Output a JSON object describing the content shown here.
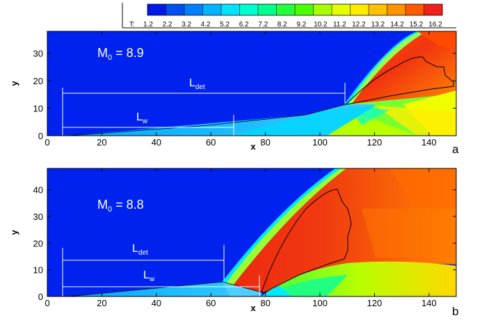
{
  "legend": {
    "label": "T:",
    "ticks": [
      "1.2",
      "2.2",
      "3.2",
      "4.2",
      "5.2",
      "6.2",
      "7.2",
      "8.2",
      "9.2",
      "10.2",
      "11.2",
      "12.2",
      "13.2",
      "14.2",
      "15.2",
      "16.2"
    ],
    "colors": [
      "#0019e8",
      "#0050f2",
      "#007ffb",
      "#00b4ff",
      "#00e3ff",
      "#00ffd0",
      "#00ff8f",
      "#22ff3c",
      "#4cff00",
      "#a8ff00",
      "#e4ff00",
      "#ffea00",
      "#ffc100",
      "#ff9200",
      "#ff5a00",
      "#f0201a"
    ]
  },
  "chart_data": [
    {
      "type": "heatmap",
      "panel_label": "a",
      "xlabel": "x",
      "ylabel": "y",
      "xlim": [
        0,
        150
      ],
      "ylim": [
        0,
        38
      ],
      "x_ticks": [
        "0",
        "20",
        "40",
        "60",
        "80",
        "100",
        "120",
        "140"
      ],
      "y_ticks": [
        "0",
        "10",
        "20",
        "30"
      ],
      "annotations": {
        "mach_main": "M",
        "mach_sub": "0",
        "mach_value": " = 8.9",
        "ldet_main": "L",
        "ldet_sub": "det",
        "lw_main": "L",
        "lw_sub": "w"
      },
      "markers": {
        "ldet_x": [
          5,
          109
        ],
        "ldet_y": 16.5,
        "lw_x": [
          5,
          68
        ],
        "lw_y": 3.2
      }
    },
    {
      "type": "heatmap",
      "panel_label": "b",
      "xlabel": "x",
      "ylabel": "y",
      "xlim": [
        0,
        150
      ],
      "ylim": [
        0,
        48
      ],
      "x_ticks": [
        "0",
        "20",
        "40",
        "60",
        "80",
        "100",
        "120",
        "140"
      ],
      "y_ticks": [
        "0",
        "10",
        "20",
        "30",
        "40"
      ],
      "annotations": {
        "mach_main": "M",
        "mach_sub": "0",
        "mach_value": " = 8.8",
        "ldet_main": "L",
        "ldet_sub": "det",
        "lw_main": "L",
        "lw_sub": "w"
      },
      "markers": {
        "ldet_x": [
          5,
          65
        ],
        "ldet_y": 16.7,
        "lw_x": [
          5,
          79
        ],
        "lw_y": 3.7
      }
    }
  ]
}
